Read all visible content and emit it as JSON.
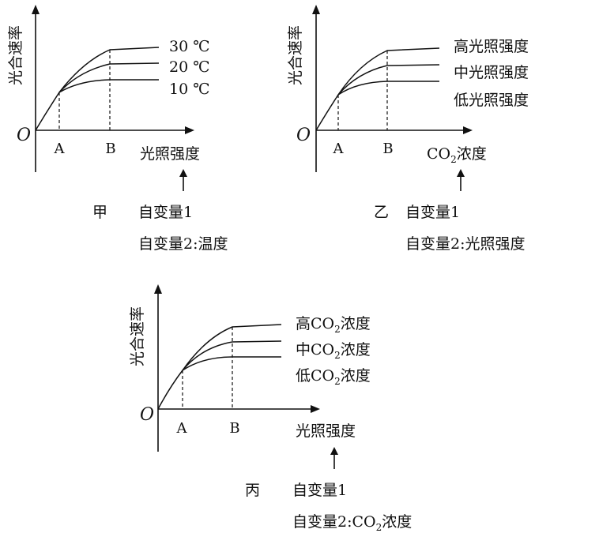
{
  "panels": [
    {
      "name": "甲",
      "y_label": "光合速率",
      "origin": "O",
      "tick_a": "A",
      "tick_b": "B",
      "x_label": "光照强度",
      "curve_labels": [
        "30 ℃",
        "20 ℃",
        "10 ℃"
      ],
      "variable_1": "自变量1",
      "variable_2": "自变量2:温度"
    },
    {
      "name": "乙",
      "y_label": "光合速率",
      "origin": "O",
      "tick_a": "A",
      "tick_b": "B",
      "x_label_main": "CO",
      "x_label_sub": "2",
      "x_label_tail": "浓度",
      "curve_labels": [
        "高光照强度",
        "中光照强度",
        "低光照强度"
      ],
      "variable_1": "自变量1",
      "variable_2": "自变量2:光照强度"
    },
    {
      "name": "丙",
      "y_label": "光合速率",
      "origin": "O",
      "tick_a": "A",
      "tick_b": "B",
      "x_label": "光照强度",
      "curve_labels": [
        {
          "pre": "高CO",
          "sub": "2",
          "post": "浓度"
        },
        {
          "pre": "中CO",
          "sub": "2",
          "post": "浓度"
        },
        {
          "pre": "低CO",
          "sub": "2",
          "post": "浓度"
        }
      ],
      "variable_1": "自变量1",
      "variable_2_pre": "自变量2:CO",
      "variable_2_sub": "2",
      "variable_2_post": "浓度"
    }
  ]
}
